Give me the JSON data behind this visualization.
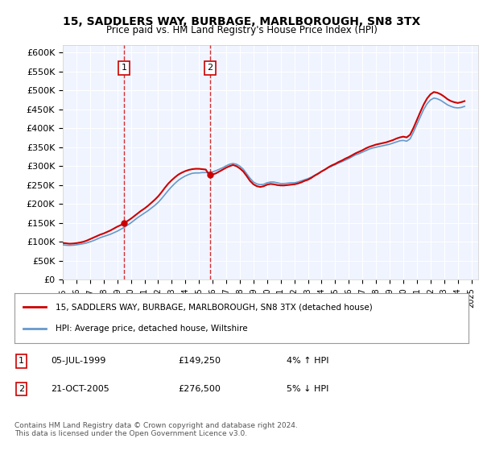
{
  "title": "15, SADDLERS WAY, BURBAGE, MARLBOROUGH, SN8 3TX",
  "subtitle": "Price paid vs. HM Land Registry's House Price Index (HPI)",
  "ylabel": "",
  "ylim": [
    0,
    620000
  ],
  "yticks": [
    0,
    50000,
    100000,
    150000,
    200000,
    250000,
    300000,
    350000,
    400000,
    450000,
    500000,
    550000,
    600000
  ],
  "ytick_labels": [
    "£0",
    "£50K",
    "£100K",
    "£150K",
    "£200K",
    "£250K",
    "£300K",
    "£350K",
    "£400K",
    "£450K",
    "£500K",
    "£550K",
    "£600K"
  ],
  "xlim_start": 1995.0,
  "xlim_end": 2025.5,
  "background_color": "#ffffff",
  "plot_bg_color": "#f0f4ff",
  "grid_color": "#ffffff",
  "hpi_color": "#6699cc",
  "price_color": "#cc0000",
  "transactions": [
    {
      "year": 1999.5,
      "price": 149250,
      "label": "1"
    },
    {
      "year": 2005.8,
      "price": 276500,
      "label": "2"
    }
  ],
  "transaction_table": [
    {
      "num": "1",
      "date": "05-JUL-1999",
      "price": "£149,250",
      "note": "4% ↑ HPI"
    },
    {
      "num": "2",
      "date": "21-OCT-2005",
      "price": "£276,500",
      "note": "5% ↓ HPI"
    }
  ],
  "legend_line1": "15, SADDLERS WAY, BURBAGE, MARLBOROUGH, SN8 3TX (detached house)",
  "legend_line2": "HPI: Average price, detached house, Wiltshire",
  "footnote": "Contains HM Land Registry data © Crown copyright and database right 2024.\nThis data is licensed under the Open Government Licence v3.0.",
  "hpi_data_x": [
    1995.0,
    1995.25,
    1995.5,
    1995.75,
    1996.0,
    1996.25,
    1996.5,
    1996.75,
    1997.0,
    1997.25,
    1997.5,
    1997.75,
    1998.0,
    1998.25,
    1998.5,
    1998.75,
    1999.0,
    1999.25,
    1999.5,
    1999.75,
    2000.0,
    2000.25,
    2000.5,
    2000.75,
    2001.0,
    2001.25,
    2001.5,
    2001.75,
    2002.0,
    2002.25,
    2002.5,
    2002.75,
    2003.0,
    2003.25,
    2003.5,
    2003.75,
    2004.0,
    2004.25,
    2004.5,
    2004.75,
    2005.0,
    2005.25,
    2005.5,
    2005.75,
    2006.0,
    2006.25,
    2006.5,
    2006.75,
    2007.0,
    2007.25,
    2007.5,
    2007.75,
    2008.0,
    2008.25,
    2008.5,
    2008.75,
    2009.0,
    2009.25,
    2009.5,
    2009.75,
    2010.0,
    2010.25,
    2010.5,
    2010.75,
    2011.0,
    2011.25,
    2011.5,
    2011.75,
    2012.0,
    2012.25,
    2012.5,
    2012.75,
    2013.0,
    2013.25,
    2013.5,
    2013.75,
    2014.0,
    2014.25,
    2014.5,
    2014.75,
    2015.0,
    2015.25,
    2015.5,
    2015.75,
    2016.0,
    2016.25,
    2016.5,
    2016.75,
    2017.0,
    2017.25,
    2017.5,
    2017.75,
    2018.0,
    2018.25,
    2018.5,
    2018.75,
    2019.0,
    2019.25,
    2019.5,
    2019.75,
    2020.0,
    2020.25,
    2020.5,
    2020.75,
    2021.0,
    2021.25,
    2021.5,
    2021.75,
    2022.0,
    2022.25,
    2022.5,
    2022.75,
    2023.0,
    2023.25,
    2023.5,
    2023.75,
    2024.0,
    2024.25,
    2024.5
  ],
  "hpi_data_y": [
    92000,
    91000,
    90500,
    91000,
    92000,
    93500,
    95000,
    97000,
    100000,
    103000,
    107000,
    111000,
    114000,
    117000,
    120000,
    124000,
    128000,
    133000,
    138000,
    144000,
    150000,
    157000,
    164000,
    170000,
    176000,
    182000,
    189000,
    196000,
    204000,
    214000,
    225000,
    236000,
    246000,
    255000,
    263000,
    269000,
    274000,
    278000,
    281000,
    282000,
    282000,
    283000,
    283000,
    284000,
    285000,
    288000,
    292000,
    296000,
    301000,
    305000,
    307000,
    305000,
    300000,
    292000,
    280000,
    268000,
    258000,
    253000,
    251000,
    252000,
    256000,
    258000,
    258000,
    256000,
    254000,
    254000,
    255000,
    256000,
    256000,
    258000,
    261000,
    264000,
    267000,
    271000,
    276000,
    281000,
    286000,
    291000,
    296000,
    300000,
    304000,
    308000,
    312000,
    316000,
    320000,
    325000,
    330000,
    333000,
    337000,
    341000,
    345000,
    348000,
    350000,
    352000,
    354000,
    356000,
    358000,
    361000,
    364000,
    367000,
    368000,
    366000,
    372000,
    390000,
    410000,
    430000,
    450000,
    465000,
    475000,
    480000,
    478000,
    474000,
    468000,
    462000,
    458000,
    455000,
    454000,
    455000,
    458000
  ],
  "price_data_x": [
    1995.0,
    1995.25,
    1995.5,
    1995.75,
    1996.0,
    1996.25,
    1996.5,
    1996.75,
    1997.0,
    1997.25,
    1997.5,
    1997.75,
    1998.0,
    1998.25,
    1998.5,
    1998.75,
    1999.0,
    1999.25,
    1999.5,
    1999.75,
    2000.0,
    2000.25,
    2000.5,
    2000.75,
    2001.0,
    2001.25,
    2001.5,
    2001.75,
    2002.0,
    2002.25,
    2002.5,
    2002.75,
    2003.0,
    2003.25,
    2003.5,
    2003.75,
    2004.0,
    2004.25,
    2004.5,
    2004.75,
    2005.0,
    2005.25,
    2005.5,
    2005.75,
    2006.0,
    2006.25,
    2006.5,
    2006.75,
    2007.0,
    2007.25,
    2007.5,
    2007.75,
    2008.0,
    2008.25,
    2008.5,
    2008.75,
    2009.0,
    2009.25,
    2009.5,
    2009.75,
    2010.0,
    2010.25,
    2010.5,
    2010.75,
    2011.0,
    2011.25,
    2011.5,
    2011.75,
    2012.0,
    2012.25,
    2012.5,
    2012.75,
    2013.0,
    2013.25,
    2013.5,
    2013.75,
    2014.0,
    2014.25,
    2014.5,
    2014.75,
    2015.0,
    2015.25,
    2015.5,
    2015.75,
    2016.0,
    2016.25,
    2016.5,
    2016.75,
    2017.0,
    2017.25,
    2017.5,
    2017.75,
    2018.0,
    2018.25,
    2018.5,
    2018.75,
    2019.0,
    2019.25,
    2019.5,
    2019.75,
    2020.0,
    2020.25,
    2020.5,
    2020.75,
    2021.0,
    2021.25,
    2021.5,
    2021.75,
    2022.0,
    2022.25,
    2022.5,
    2022.75,
    2023.0,
    2023.25,
    2023.5,
    2023.75,
    2024.0,
    2024.25,
    2024.5
  ],
  "price_data_y": [
    97000,
    96000,
    95000,
    95500,
    96500,
    98000,
    100000,
    103000,
    107000,
    111000,
    115000,
    119000,
    122000,
    126000,
    130000,
    135000,
    140000,
    144000,
    149250,
    155000,
    161000,
    168000,
    175000,
    182000,
    188000,
    195000,
    203000,
    211000,
    220000,
    231000,
    243000,
    254000,
    263000,
    271000,
    278000,
    283000,
    287000,
    290000,
    292000,
    293000,
    293000,
    292000,
    291000,
    276500,
    278000,
    281000,
    286000,
    291000,
    296000,
    300000,
    303000,
    300000,
    294000,
    286000,
    274000,
    261000,
    252000,
    247000,
    245000,
    247000,
    251000,
    253000,
    252000,
    250000,
    249000,
    249000,
    250000,
    251000,
    252000,
    254000,
    257000,
    261000,
    264000,
    269000,
    275000,
    280000,
    286000,
    291000,
    297000,
    302000,
    306000,
    311000,
    315000,
    320000,
    324000,
    329000,
    334000,
    338000,
    342000,
    347000,
    351000,
    354000,
    357000,
    359000,
    361000,
    363000,
    366000,
    369000,
    373000,
    376000,
    378000,
    376000,
    383000,
    401000,
    422000,
    443000,
    463000,
    479000,
    490000,
    496000,
    494000,
    490000,
    484000,
    477000,
    472000,
    469000,
    467000,
    469000,
    472000
  ]
}
